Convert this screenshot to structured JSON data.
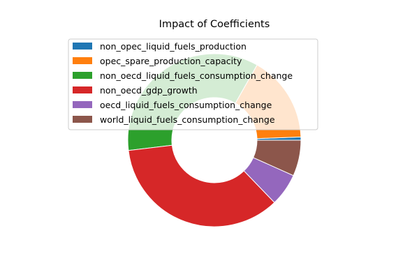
{
  "chart_data": {
    "type": "pie",
    "variant": "donut",
    "title": "Impact of Coefficients",
    "legend_position": "upper-left",
    "start_angle_deg": 0,
    "direction": "counterclockwise",
    "slices": [
      {
        "label": "non_opec_liquid_fuels_production",
        "value": 0.6,
        "color": "#1f77b4"
      },
      {
        "label": "opec_spare_production_capacity",
        "value": 16.2,
        "color": "#ff7f0e"
      },
      {
        "label": "non_oecd_liquid_fuels_consumption_change",
        "value": 35.1,
        "color": "#2ca02c"
      },
      {
        "label": "non_oecd_gdp_growth",
        "value": 35.3,
        "color": "#d62728"
      },
      {
        "label": "oecd_liquid_fuels_consumption_change",
        "value": 6.1,
        "color": "#9467bd"
      },
      {
        "label": "world_liquid_fuels_consumption_change",
        "value": 6.7,
        "color": "#8c564b"
      }
    ]
  }
}
